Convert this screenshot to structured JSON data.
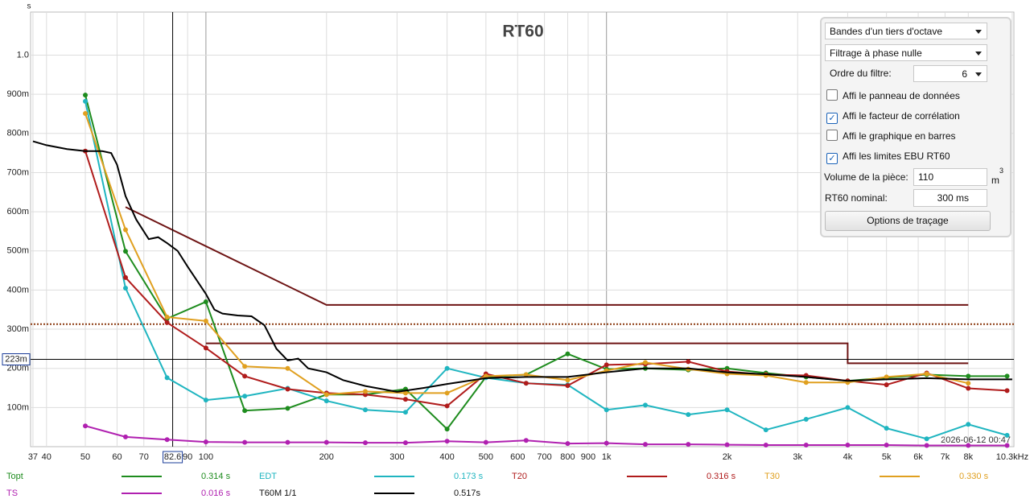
{
  "chart_data": {
    "type": "line",
    "title": "RT60",
    "y_unit": "s",
    "timestamp": "2026-06-12 00:47",
    "xscale": "log",
    "xlim": [
      36.5,
      10400
    ],
    "ylim": [
      0,
      1.11
    ],
    "grid": true,
    "xticks": [
      37,
      40,
      50,
      60,
      70,
      90,
      100,
      200,
      300,
      400,
      500,
      600,
      700,
      800,
      900,
      {
        "value": 1000,
        "label": "1k"
      },
      {
        "value": 2000,
        "label": "2k"
      },
      {
        "value": 3000,
        "label": "3k"
      },
      {
        "value": 4000,
        "label": "4k"
      },
      {
        "value": 5000,
        "label": "5k"
      },
      {
        "value": 6000,
        "label": "6k"
      },
      {
        "value": 7000,
        "label": "7k"
      },
      {
        "value": 8000,
        "label": "8k"
      },
      {
        "value": 10300,
        "label": "10.3kHz"
      }
    ],
    "yticks": [
      {
        "value": 0.1,
        "label": "100m"
      },
      {
        "value": 0.2,
        "label": "200m"
      },
      {
        "value": 0.3,
        "label": "300m"
      },
      {
        "value": 0.4,
        "label": "400m"
      },
      {
        "value": 0.5,
        "label": "500m"
      },
      {
        "value": 0.6,
        "label": "600m"
      },
      {
        "value": 0.7,
        "label": "700m"
      },
      {
        "value": 0.8,
        "label": "800m"
      },
      {
        "value": 0.9,
        "label": "900m"
      },
      {
        "value": 1,
        "label": "1.0"
      }
    ],
    "x": [
      50,
      63,
      80,
      100,
      125,
      160,
      200,
      250,
      315,
      400,
      500,
      630,
      800,
      1000,
      1250,
      1600,
      2000,
      2500,
      3150,
      4000,
      5000,
      6300,
      8000,
      10000
    ],
    "series": [
      {
        "name": "Topt",
        "summary": "0.314 s",
        "color": "#1e8c1e",
        "markers": true,
        "values": [
          0.898,
          0.499,
          0.327,
          0.37,
          0.092,
          0.098,
          0.133,
          0.133,
          0.147,
          0.045,
          0.178,
          0.184,
          0.237,
          0.198,
          0.2,
          0.196,
          0.2,
          0.188,
          0.178,
          0.168,
          0.176,
          0.184,
          0.18,
          0.18
        ]
      },
      {
        "name": "EDT",
        "summary": "0.173 s",
        "color": "#1fb5c0",
        "markers": true,
        "values": [
          0.882,
          0.405,
          0.176,
          0.119,
          0.129,
          0.149,
          0.117,
          0.094,
          0.088,
          0.2,
          0.176,
          0.162,
          0.158,
          0.094,
          0.106,
          0.082,
          0.094,
          0.043,
          0.07,
          0.1,
          0.047,
          0.02,
          0.057,
          0.029
        ]
      },
      {
        "name": "T20",
        "summary": "0.316 s",
        "color": "#b01c1c",
        "markers": true,
        "values": [
          0.755,
          0.432,
          0.317,
          0.252,
          0.18,
          0.147,
          0.137,
          0.133,
          0.121,
          0.104,
          0.186,
          0.162,
          0.156,
          0.209,
          0.211,
          0.217,
          0.192,
          0.184,
          0.182,
          0.168,
          0.158,
          0.188,
          0.149,
          0.143
        ]
      },
      {
        "name": "T30",
        "summary": "0.330 s",
        "color": "#e0a020",
        "markers": true,
        "values": [
          0.851,
          0.554,
          0.331,
          0.321,
          0.205,
          0.2,
          0.133,
          0.141,
          0.137,
          0.137,
          0.18,
          0.184,
          0.17,
          0.194,
          0.215,
          0.198,
          0.186,
          0.182,
          0.164,
          0.164,
          0.178,
          0.186,
          0.162,
          null
        ]
      },
      {
        "name": "TS",
        "summary": "0.016 s",
        "color": "#b020b0",
        "markers": true,
        "values": [
          0.053,
          0.025,
          0.018,
          0.012,
          0.011,
          0.011,
          0.011,
          0.01,
          0.01,
          0.014,
          0.011,
          0.016,
          0.008,
          0.009,
          0.006,
          0.006,
          0.005,
          0.004,
          0.004,
          0.004,
          0.004,
          0.003,
          0.003,
          0.003
        ]
      },
      {
        "name": "T60M 1/1",
        "summary": "0.517s",
        "color": "#000000",
        "markers": false,
        "x": [
          37,
          40,
          45,
          50,
          55,
          58,
          60,
          63,
          67,
          72,
          76,
          80,
          85,
          90,
          100,
          105,
          110,
          120,
          130,
          140,
          150,
          160,
          170,
          180,
          200,
          220,
          250,
          300,
          350,
          400,
          500,
          630,
          800,
          1000,
          1250,
          1600,
          2000,
          2500,
          3150,
          4000,
          5000,
          6300,
          8000,
          10300
        ],
        "values": [
          0.78,
          0.77,
          0.76,
          0.755,
          0.755,
          0.75,
          0.72,
          0.64,
          0.58,
          0.53,
          0.535,
          0.52,
          0.5,
          0.46,
          0.39,
          0.35,
          0.34,
          0.335,
          0.333,
          0.31,
          0.25,
          0.22,
          0.225,
          0.2,
          0.19,
          0.17,
          0.155,
          0.14,
          0.15,
          0.16,
          0.175,
          0.178,
          0.178,
          0.19,
          0.2,
          0.2,
          0.19,
          0.185,
          0.178,
          0.168,
          0.172,
          0.175,
          0.172,
          0.172
        ]
      }
    ],
    "limits_color": "#6e1414",
    "limits": [
      {
        "x": [
          63,
          200,
          8000
        ],
        "values": [
          0.612,
          0.362,
          0.362
        ]
      },
      {
        "x": [
          100,
          4000,
          4000,
          8000
        ],
        "values": [
          0.264,
          0.264,
          0.213,
          0.213
        ]
      }
    ],
    "reference_line": {
      "value": 0.313,
      "color": "#8b3a10"
    },
    "cursor": {
      "x": 82.6,
      "y": {
        "value": 0.223,
        "label": "223m"
      }
    }
  },
  "panel": {
    "band_select": "Bandes d'un tiers d'octave",
    "filter_select": "Filtrage à phase nulle",
    "order_label": "Ordre du filtre:",
    "order_value": "6",
    "checkboxes": [
      {
        "label": "Affi le panneau de données",
        "checked": false
      },
      {
        "label": "Affi le facteur de corrélation",
        "checked": true
      },
      {
        "label": "Affi le graphique en barres",
        "checked": false
      },
      {
        "label": "Affi les limites EBU RT60",
        "checked": true
      }
    ],
    "volume_label": "Volume de la pièce:",
    "volume_value": "110",
    "volume_unit": "m",
    "volume_unit_exp": "3",
    "nominal_label": "RT60 nominal:",
    "nominal_value": "300 ms",
    "options_button": "Options de traçage"
  }
}
